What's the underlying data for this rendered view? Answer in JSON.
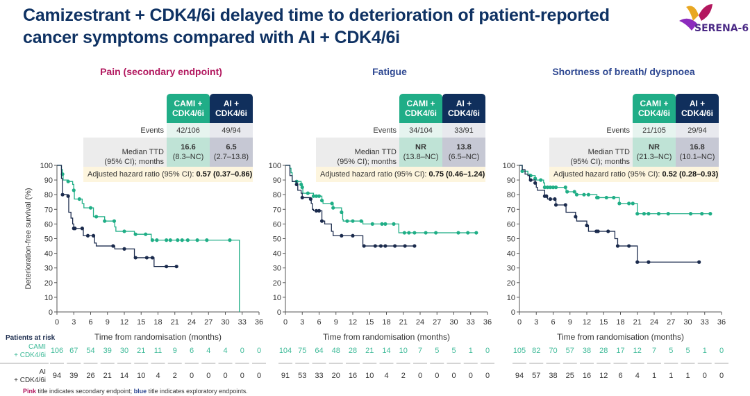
{
  "header": {
    "title_line1": "Camizestrant + CDK4/6i delayed time to deterioration of patient-reported",
    "title_line2": "cancer symptoms compared with AI + CDK4/6i",
    "logo_text": "SERENA-6"
  },
  "colors": {
    "cami": "#1fae86",
    "ai": "#1b2b4d",
    "pink_title": "#b2185f",
    "blue_title": "#2d4791",
    "cami_header": "#20ad87",
    "ai_header": "#102f5c"
  },
  "table_labels": {
    "cami_header": "CAMI + CDK4/6i",
    "ai_header": "AI + CDK4/6i",
    "events": "Events",
    "median_1": "Median TTD",
    "median_2": "(95% CI); months",
    "hr": "Adjusted hazard ratio (95% CI): "
  },
  "risk": {
    "title": "Patients at risk",
    "cami_label_1": "CAMI",
    "cami_label_2": "+ CDK4/6i",
    "ai_label_1": "AI",
    "ai_label_2": "+ CDK4/6i"
  },
  "footnote": {
    "pink": "Pink",
    "mid": " title indicates secondary endpoint; ",
    "blue": "blue",
    "end": " title indicates exploratory endpoints."
  },
  "chart_data": [
    {
      "type": "line",
      "title": "Pain (secondary endpoint)",
      "title_color": "pink",
      "xlabel": "Time from randomisation (months)",
      "ylabel": "Deterioration-free survival (%)",
      "xlim": [
        0,
        36
      ],
      "ylim": [
        0,
        100
      ],
      "xticks": [
        0,
        3,
        6,
        9,
        12,
        15,
        18,
        21,
        24,
        27,
        30,
        33,
        36
      ],
      "yticks": [
        0,
        10,
        20,
        30,
        40,
        50,
        60,
        70,
        80,
        90,
        100
      ],
      "events": [
        "42/106",
        "49/94"
      ],
      "median": [
        "16.6",
        "6.5"
      ],
      "median_ci": [
        "(8.3–NC)",
        "(2.7–13.8)"
      ],
      "hr": "0.57 (0.37–0.86)",
      "series": [
        {
          "name": "CAMI + CDK4/6i",
          "steps": [
            [
              0,
              100
            ],
            [
              0.8,
              97
            ],
            [
              1,
              94
            ],
            [
              1.1,
              90
            ],
            [
              2,
              89
            ],
            [
              2.8,
              87
            ],
            [
              3,
              83
            ],
            [
              3.1,
              77
            ],
            [
              4.5,
              74
            ],
            [
              4.8,
              71
            ],
            [
              6.5,
              65
            ],
            [
              8.5,
              62
            ],
            [
              10.3,
              58
            ],
            [
              10.5,
              55
            ],
            [
              13.8,
              53
            ],
            [
              16.8,
              49
            ],
            [
              32.5,
              49
            ],
            [
              32.5,
              0
            ]
          ],
          "censored": [
            1,
            2,
            3,
            4,
            6,
            7,
            8.5,
            10.2,
            12,
            14,
            15.8,
            17,
            17.8,
            19.5,
            20.2,
            21.5,
            22.3,
            23.3,
            25,
            26.7,
            30.8
          ],
          "at_risk": [
            106,
            67,
            54,
            39,
            30,
            21,
            11,
            9,
            6,
            4,
            4,
            0,
            0
          ]
        },
        {
          "name": "AI + CDK4/6i",
          "steps": [
            [
              0,
              100
            ],
            [
              0.8,
              91
            ],
            [
              1,
              80
            ],
            [
              2,
              79
            ],
            [
              2.1,
              68
            ],
            [
              2.5,
              64
            ],
            [
              2.8,
              60
            ],
            [
              3,
              57
            ],
            [
              4.7,
              52
            ],
            [
              6.7,
              47
            ],
            [
              7,
              45
            ],
            [
              10.3,
              43
            ],
            [
              13.8,
              37
            ],
            [
              17.3,
              31
            ],
            [
              21.3,
              31
            ]
          ],
          "censored": [
            1,
            2,
            3,
            3.2,
            4.5,
            5.5,
            6.5,
            10,
            12,
            14,
            16,
            17,
            19.5,
            21.3
          ],
          "at_risk": [
            94,
            39,
            26,
            21,
            14,
            10,
            4,
            2,
            0,
            0,
            0,
            0,
            0
          ]
        }
      ]
    },
    {
      "type": "line",
      "title": "Fatigue",
      "title_color": "blue",
      "xlabel": "Time from randomisation (months)",
      "xlim": [
        0,
        36
      ],
      "ylim": [
        0,
        100
      ],
      "xticks": [
        0,
        3,
        6,
        9,
        12,
        15,
        18,
        21,
        24,
        27,
        30,
        33,
        36
      ],
      "yticks": [
        0,
        10,
        20,
        30,
        40,
        50,
        60,
        70,
        80,
        90,
        100
      ],
      "events": [
        "34/104",
        "33/91"
      ],
      "median": [
        "NR",
        "13.8"
      ],
      "median_ci": [
        "(13.8–NC)",
        "(6.5–NC)"
      ],
      "hr": "0.75 (0.46–1.24)",
      "series": [
        {
          "name": "CAMI + CDK4/6i",
          "steps": [
            [
              0,
              100
            ],
            [
              0.8,
              98
            ],
            [
              1,
              95
            ],
            [
              1.2,
              89
            ],
            [
              2.8,
              87
            ],
            [
              3,
              85
            ],
            [
              3.1,
              81
            ],
            [
              5,
              79
            ],
            [
              6.5,
              76
            ],
            [
              6.7,
              74
            ],
            [
              8.5,
              71
            ],
            [
              10,
              68
            ],
            [
              10.2,
              63
            ],
            [
              10.3,
              62
            ],
            [
              13.8,
              60
            ],
            [
              20.2,
              54
            ],
            [
              34,
              54
            ]
          ],
          "censored": [
            2,
            2.8,
            3,
            4,
            5,
            5.5,
            6,
            6.5,
            8.3,
            8.5,
            10,
            11,
            12,
            13.5,
            15.5,
            17.2,
            17.8,
            19.3,
            21.2,
            22,
            23,
            25,
            26.8,
            30.8,
            32.5,
            34
          ],
          "at_risk": [
            104,
            75,
            64,
            48,
            28,
            21,
            14,
            10,
            7,
            5,
            5,
            1,
            0
          ]
        },
        {
          "name": "AI + CDK4/6i",
          "steps": [
            [
              0,
              100
            ],
            [
              0.8,
              93
            ],
            [
              1.2,
              89
            ],
            [
              2,
              87
            ],
            [
              2.2,
              83
            ],
            [
              2.8,
              81
            ],
            [
              3,
              78
            ],
            [
              4.5,
              77
            ],
            [
              4.6,
              74
            ],
            [
              4.8,
              70
            ],
            [
              5,
              69
            ],
            [
              6.5,
              62
            ],
            [
              7,
              60
            ],
            [
              8.2,
              55
            ],
            [
              8.5,
              52
            ],
            [
              13.8,
              45
            ],
            [
              23,
              45
            ]
          ],
          "censored": [
            2,
            3,
            4.5,
            5.5,
            6,
            6.5,
            10,
            12,
            14,
            16,
            17,
            17.8,
            19.5,
            21.3,
            23
          ],
          "at_risk": [
            91,
            53,
            33,
            20,
            16,
            10,
            4,
            2,
            0,
            0,
            0,
            0,
            0
          ]
        }
      ]
    },
    {
      "type": "line",
      "title": "Shortness of breath/ dyspnoea",
      "title_color": "blue",
      "xlabel": "Time from randomisation (months)",
      "xlim": [
        0,
        36
      ],
      "ylim": [
        0,
        100
      ],
      "xticks": [
        0,
        3,
        6,
        9,
        12,
        15,
        18,
        21,
        24,
        27,
        30,
        33,
        36
      ],
      "yticks": [
        0,
        10,
        20,
        30,
        40,
        50,
        60,
        70,
        80,
        90,
        100
      ],
      "events": [
        "21/105",
        "29/94"
      ],
      "median": [
        "NR",
        "16.8"
      ],
      "median_ci": [
        "(21.3–NC)",
        "(10.1–NC)"
      ],
      "hr": "0.52 (0.28–0.93)",
      "series": [
        {
          "name": "CAMI + CDK4/6i",
          "steps": [
            [
              0,
              100
            ],
            [
              0.5,
              96
            ],
            [
              1.5,
              94
            ],
            [
              2,
              93
            ],
            [
              2.8,
              91
            ],
            [
              3,
              90
            ],
            [
              4.3,
              88
            ],
            [
              4.5,
              85
            ],
            [
              8,
              85
            ],
            [
              8.3,
              82
            ],
            [
              10,
              81
            ],
            [
              10.2,
              80
            ],
            [
              13.8,
              78
            ],
            [
              17.8,
              74
            ],
            [
              21,
              67
            ],
            [
              34,
              67
            ]
          ],
          "censored": [
            0.5,
            2,
            2.8,
            3.8,
            4.5,
            5,
            5.5,
            6,
            6.5,
            8.2,
            8.5,
            9.8,
            10.2,
            11.5,
            12.3,
            13.8,
            14,
            15.5,
            16.8,
            17.8,
            19.5,
            20.2,
            21,
            22.2,
            23,
            24.8,
            26.5,
            30.5,
            32.5,
            34
          ],
          "at_risk": [
            105,
            82,
            70,
            57,
            38,
            28,
            17,
            12,
            7,
            5,
            5,
            1,
            0
          ]
        },
        {
          "name": "AI + CDK4/6i",
          "steps": [
            [
              0,
              100
            ],
            [
              0.5,
              97
            ],
            [
              1,
              94
            ],
            [
              1.5,
              93
            ],
            [
              1.8,
              90
            ],
            [
              2.8,
              88
            ],
            [
              3,
              85
            ],
            [
              3.2,
              83
            ],
            [
              4.5,
              79
            ],
            [
              5,
              77
            ],
            [
              6.5,
              73
            ],
            [
              8.3,
              68
            ],
            [
              10,
              65
            ],
            [
              10.2,
              62
            ],
            [
              12,
              59
            ],
            [
              12.3,
              55
            ],
            [
              17,
              50
            ],
            [
              17.5,
              45
            ],
            [
              21,
              34
            ],
            [
              32,
              34
            ]
          ],
          "censored": [
            2,
            2.8,
            4.5,
            4.8,
            5.5,
            6.3,
            6.5,
            8.2,
            10,
            12,
            13.7,
            14,
            15.8,
            17.5,
            19.5,
            21,
            23,
            32
          ],
          "at_risk": [
            94,
            57,
            38,
            25,
            16,
            12,
            6,
            4,
            1,
            1,
            1,
            0,
            0
          ]
        }
      ]
    }
  ]
}
